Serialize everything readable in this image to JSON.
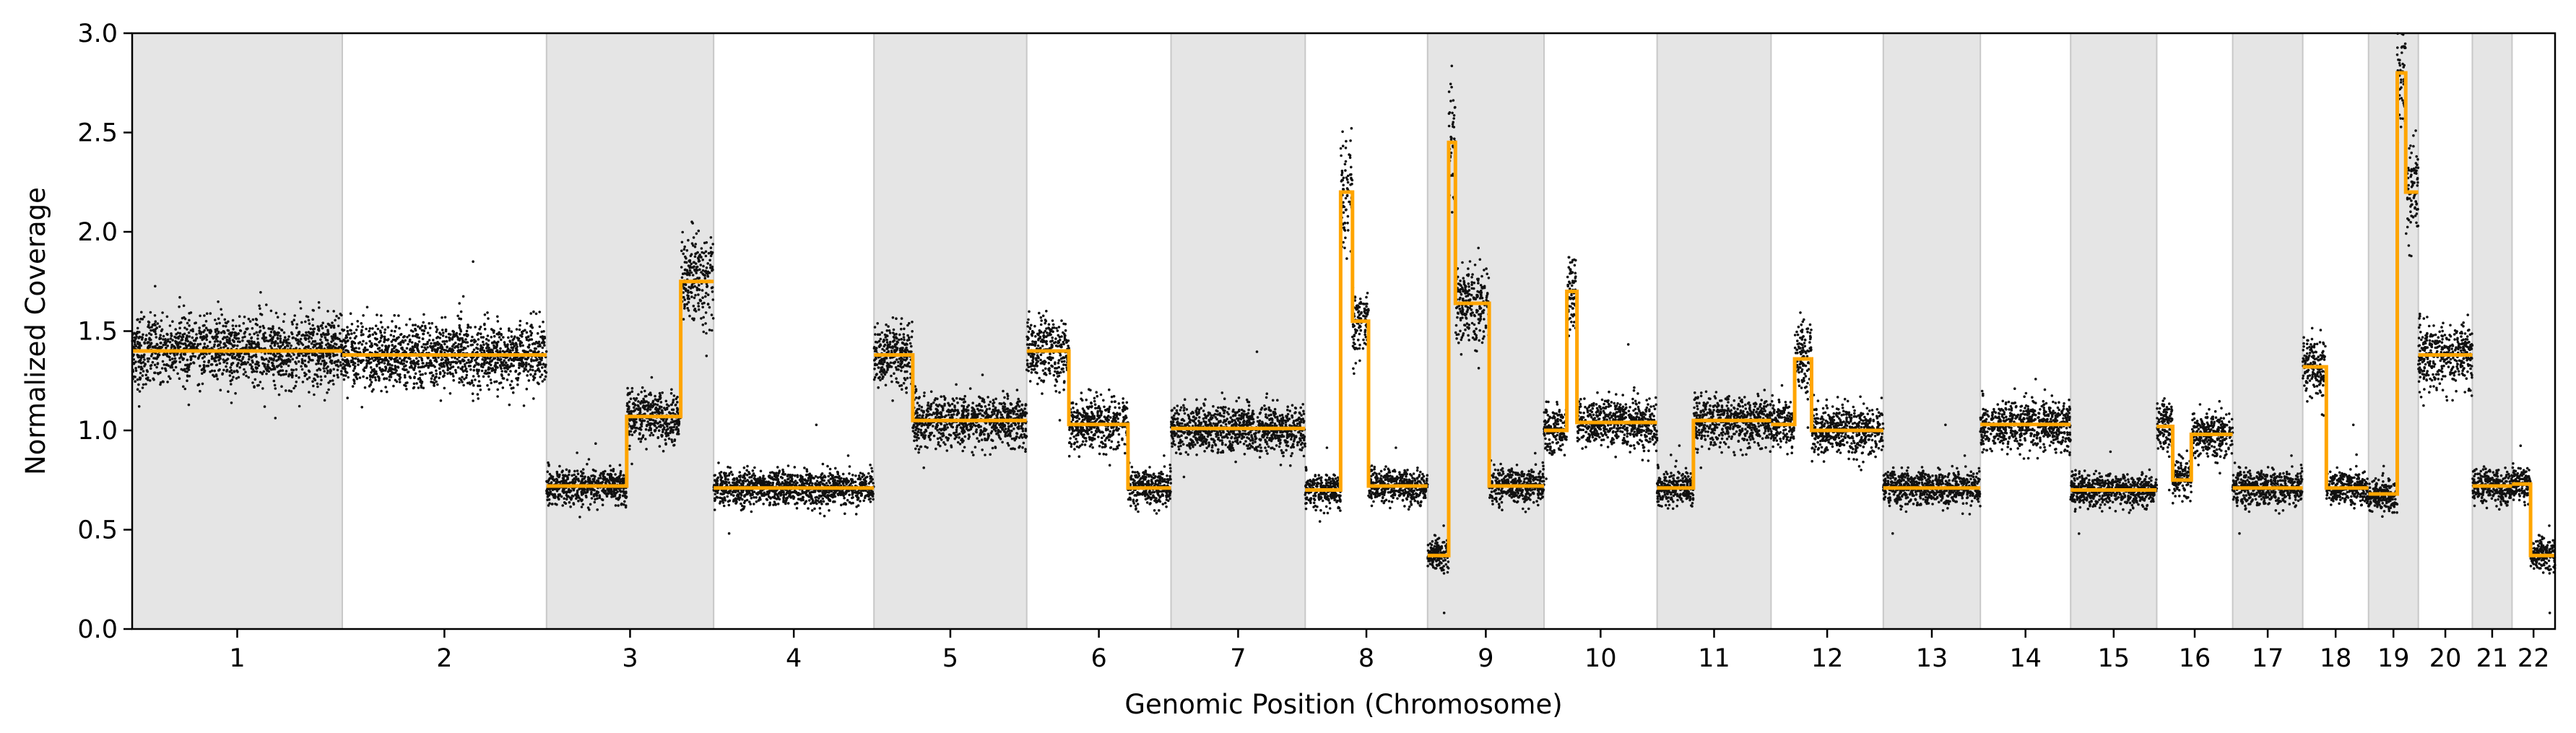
{
  "chart_data": {
    "type": "scatter",
    "xlabel": "Genomic Position (Chromosome)",
    "ylabel": "Normalized Coverage",
    "ylim": [
      0.0,
      3.0
    ],
    "yticks": [
      "0.0",
      "0.5",
      "1.0",
      "1.5",
      "2.0",
      "2.5",
      "3.0"
    ],
    "grid": false,
    "legend": "none",
    "colors": {
      "points": "#111111",
      "segments": "#FFA500",
      "shade": "#e5e5e5",
      "shade_edge": "#c8c8c8"
    },
    "chromosomes": [
      {
        "label": "1",
        "start": 0,
        "end": 249,
        "shaded": true,
        "segments": [
          [
            0,
            249,
            1.4
          ]
        ]
      },
      {
        "label": "2",
        "start": 249,
        "end": 491,
        "shaded": false,
        "segments": [
          [
            249,
            491,
            1.38
          ]
        ]
      },
      {
        "label": "3",
        "start": 491,
        "end": 689,
        "shaded": true,
        "segments": [
          [
            491,
            586,
            0.72
          ],
          [
            586,
            650,
            1.07
          ],
          [
            650,
            689,
            1.75
          ]
        ]
      },
      {
        "label": "4",
        "start": 689,
        "end": 879,
        "shaded": false,
        "segments": [
          [
            689,
            879,
            0.71
          ]
        ]
      },
      {
        "label": "5",
        "start": 879,
        "end": 1060,
        "shaded": true,
        "segments": [
          [
            879,
            925,
            1.38
          ],
          [
            925,
            1060,
            1.05
          ]
        ]
      },
      {
        "label": "6",
        "start": 1060,
        "end": 1231,
        "shaded": false,
        "segments": [
          [
            1060,
            1110,
            1.4
          ],
          [
            1110,
            1180,
            1.03
          ],
          [
            1180,
            1231,
            0.71
          ]
        ]
      },
      {
        "label": "7",
        "start": 1231,
        "end": 1390,
        "shaded": true,
        "segments": [
          [
            1231,
            1390,
            1.01
          ]
        ]
      },
      {
        "label": "8",
        "start": 1390,
        "end": 1535,
        "shaded": false,
        "segments": [
          [
            1390,
            1432,
            0.7
          ],
          [
            1432,
            1446,
            2.2
          ],
          [
            1446,
            1465,
            1.55
          ],
          [
            1465,
            1535,
            0.72
          ]
        ]
      },
      {
        "label": "9",
        "start": 1535,
        "end": 1673,
        "shaded": true,
        "segments": [
          [
            1535,
            1560,
            0.37
          ],
          [
            1560,
            1568,
            2.45
          ],
          [
            1568,
            1608,
            1.64
          ],
          [
            1608,
            1673,
            0.72
          ]
        ]
      },
      {
        "label": "10",
        "start": 1673,
        "end": 1807,
        "shaded": false,
        "segments": [
          [
            1673,
            1700,
            1.0
          ],
          [
            1700,
            1712,
            1.7
          ],
          [
            1712,
            1807,
            1.04
          ]
        ]
      },
      {
        "label": "11",
        "start": 1807,
        "end": 1942,
        "shaded": true,
        "segments": [
          [
            1807,
            1850,
            0.71
          ],
          [
            1850,
            1942,
            1.05
          ]
        ]
      },
      {
        "label": "12",
        "start": 1942,
        "end": 2075,
        "shaded": false,
        "segments": [
          [
            1942,
            1970,
            1.03
          ],
          [
            1970,
            1990,
            1.36
          ],
          [
            1990,
            2075,
            1.0
          ]
        ]
      },
      {
        "label": "13",
        "start": 2075,
        "end": 2190,
        "shaded": true,
        "segments": [
          [
            2075,
            2190,
            0.71
          ]
        ]
      },
      {
        "label": "14",
        "start": 2190,
        "end": 2297,
        "shaded": false,
        "segments": [
          [
            2190,
            2297,
            1.03
          ]
        ]
      },
      {
        "label": "15",
        "start": 2297,
        "end": 2399,
        "shaded": true,
        "segments": [
          [
            2297,
            2399,
            0.7
          ]
        ]
      },
      {
        "label": "16",
        "start": 2399,
        "end": 2489,
        "shaded": false,
        "segments": [
          [
            2399,
            2418,
            1.02
          ],
          [
            2418,
            2440,
            0.75
          ],
          [
            2440,
            2489,
            0.98
          ]
        ]
      },
      {
        "label": "17",
        "start": 2489,
        "end": 2572,
        "shaded": true,
        "segments": [
          [
            2489,
            2572,
            0.71
          ]
        ]
      },
      {
        "label": "18",
        "start": 2572,
        "end": 2650,
        "shaded": false,
        "segments": [
          [
            2572,
            2600,
            1.32
          ],
          [
            2600,
            2650,
            0.71
          ]
        ]
      },
      {
        "label": "19",
        "start": 2650,
        "end": 2709,
        "shaded": true,
        "segments": [
          [
            2650,
            2684,
            0.68
          ],
          [
            2684,
            2694,
            2.8
          ],
          [
            2694,
            2709,
            2.2
          ]
        ]
      },
      {
        "label": "20",
        "start": 2709,
        "end": 2773,
        "shaded": false,
        "segments": [
          [
            2709,
            2773,
            1.38
          ]
        ]
      },
      {
        "label": "21",
        "start": 2773,
        "end": 2820,
        "shaded": true,
        "segments": [
          [
            2773,
            2820,
            0.72
          ]
        ]
      },
      {
        "label": "22",
        "start": 2820,
        "end": 2871,
        "shaded": false,
        "segments": [
          [
            2820,
            2842,
            0.73
          ],
          [
            2842,
            2871,
            0.37
          ]
        ]
      }
    ]
  }
}
